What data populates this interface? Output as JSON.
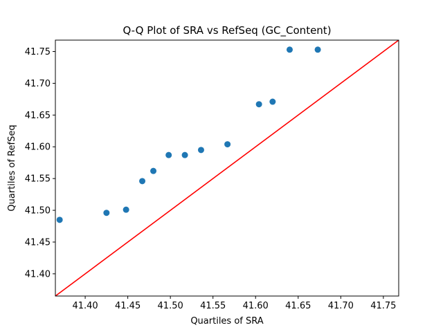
{
  "chart_data": {
    "type": "scatter",
    "title": "Q-Q Plot of SRA vs RefSeq (GC_Content)",
    "xlabel": "Quartiles of SRA",
    "ylabel": "Quartiles of RefSeq",
    "xlim": [
      41.365,
      41.768
    ],
    "ylim": [
      41.365,
      41.768
    ],
    "xticks": [
      "41.40",
      "41.45",
      "41.50",
      "41.55",
      "41.60",
      "41.65",
      "41.70",
      "41.75"
    ],
    "yticks": [
      "41.40",
      "41.45",
      "41.50",
      "41.55",
      "41.60",
      "41.65",
      "41.70",
      "41.75"
    ],
    "grid": false,
    "reference_line": {
      "from": [
        41.365,
        41.365
      ],
      "to": [
        41.768,
        41.768
      ],
      "color": "#ff0000"
    },
    "series": [
      {
        "color": "#1f77b4",
        "x": [
          41.37,
          41.425,
          41.448,
          41.467,
          41.48,
          41.498,
          41.517,
          41.536,
          41.567,
          41.604,
          41.62,
          41.64,
          41.673
        ],
        "y": [
          41.485,
          41.496,
          41.501,
          41.546,
          41.562,
          41.587,
          41.587,
          41.595,
          41.604,
          41.667,
          41.671,
          41.753,
          41.753
        ]
      }
    ]
  }
}
